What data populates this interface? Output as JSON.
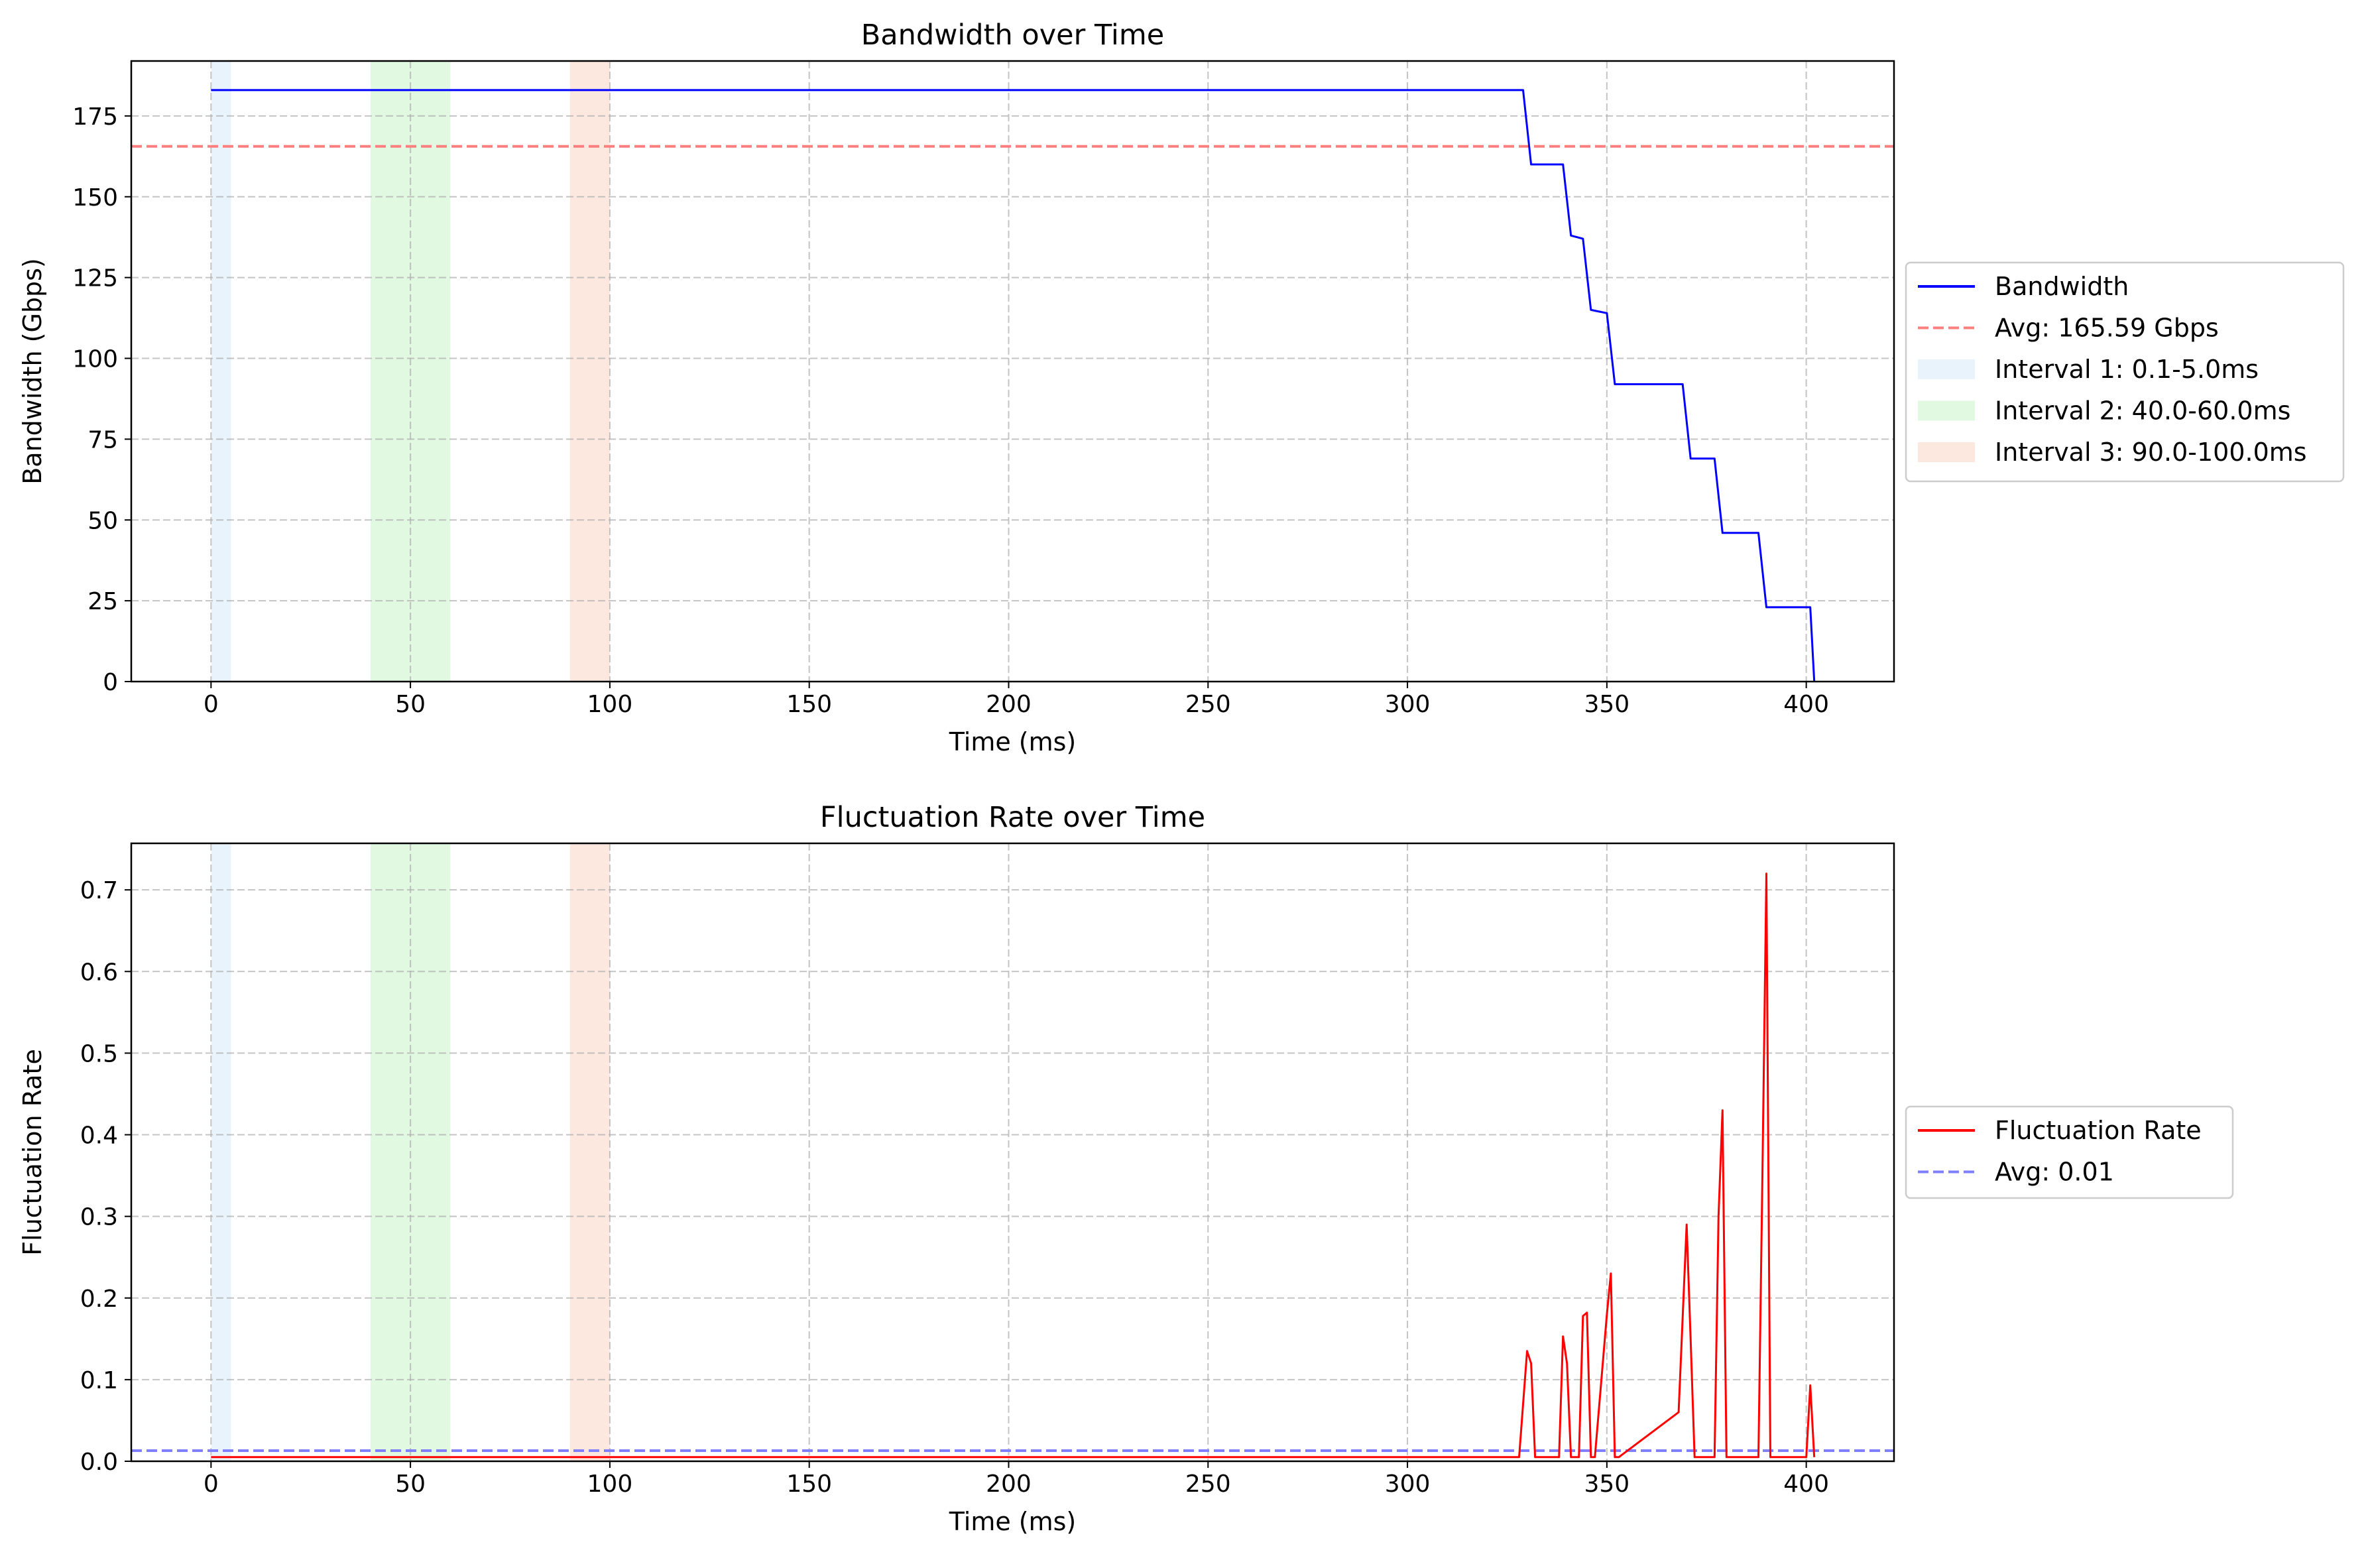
{
  "chart_data": [
    {
      "type": "line",
      "title": "Bandwidth over Time",
      "xlabel": "Time (ms)",
      "ylabel": "Bandwidth (Gbps)",
      "xlim": [
        -20,
        422
      ],
      "ylim": [
        0,
        192
      ],
      "grid": true,
      "legend_placement": "outside right",
      "xticks": [
        0,
        50,
        100,
        150,
        200,
        250,
        300,
        350,
        400
      ],
      "yticks": [
        0,
        25,
        50,
        75,
        100,
        125,
        150,
        175
      ],
      "intervals": [
        {
          "name": "Interval 1: 0.1-5.0ms",
          "start": 0.1,
          "end": 5.0,
          "color": "#d6eaf8"
        },
        {
          "name": "Interval 2: 40.0-60.0ms",
          "start": 40.0,
          "end": 60.0,
          "color": "#c9f2c9"
        },
        {
          "name": "Interval 3: 90.0-100.0ms",
          "start": 90.0,
          "end": 100.0,
          "color": "#fcd5c4"
        }
      ],
      "avg_line": {
        "name": "Avg: 165.59 Gbps",
        "value": 165.59,
        "color": "#ff7f7f"
      },
      "series": [
        {
          "name": "Bandwidth",
          "color": "#0000ff",
          "x": [
            0,
            329,
            331,
            339,
            341,
            344,
            346,
            350,
            352,
            369,
            371,
            377,
            379,
            388,
            390,
            401,
            402
          ],
          "y": [
            183,
            183,
            160,
            160,
            138,
            137,
            115,
            114,
            92,
            92,
            69,
            69,
            46,
            46,
            23,
            23,
            0
          ]
        }
      ]
    },
    {
      "type": "line",
      "title": "Fluctuation Rate over Time",
      "xlabel": "Time (ms)",
      "ylabel": "Fluctuation Rate",
      "xlim": [
        -20,
        422
      ],
      "ylim": [
        0,
        0.757
      ],
      "grid": true,
      "legend_placement": "outside right",
      "xticks": [
        0,
        50,
        100,
        150,
        200,
        250,
        300,
        350,
        400
      ],
      "yticks": [
        0.0,
        0.1,
        0.2,
        0.3,
        0.4,
        0.5,
        0.6,
        0.7
      ],
      "intervals": [
        {
          "start": 0.1,
          "end": 5.0,
          "color": "#d6eaf8"
        },
        {
          "start": 40.0,
          "end": 60.0,
          "color": "#c9f2c9"
        },
        {
          "start": 90.0,
          "end": 100.0,
          "color": "#fcd5c4"
        }
      ],
      "avg_line": {
        "name": "Avg: 0.01",
        "value": 0.013,
        "color": "#7f7fff"
      },
      "series": [
        {
          "name": "Fluctuation Rate",
          "color": "#ff0000",
          "x": [
            0,
            328,
            330,
            331,
            332,
            338,
            339,
            340,
            341,
            343,
            344,
            345,
            346,
            347,
            350,
            351,
            352,
            353,
            368,
            370,
            371,
            372,
            377,
            378,
            379,
            380,
            388,
            389,
            390,
            391,
            392,
            400,
            401,
            402
          ],
          "y": [
            0.005,
            0.005,
            0.135,
            0.12,
            0.005,
            0.005,
            0.153,
            0.12,
            0.005,
            0.005,
            0.178,
            0.182,
            0.005,
            0.005,
            0.18,
            0.23,
            0.005,
            0.005,
            0.06,
            0.29,
            0.15,
            0.005,
            0.005,
            0.3,
            0.43,
            0.005,
            0.005,
            0.35,
            0.72,
            0.005,
            0.005,
            0.005,
            0.093,
            0.005
          ]
        }
      ]
    }
  ]
}
